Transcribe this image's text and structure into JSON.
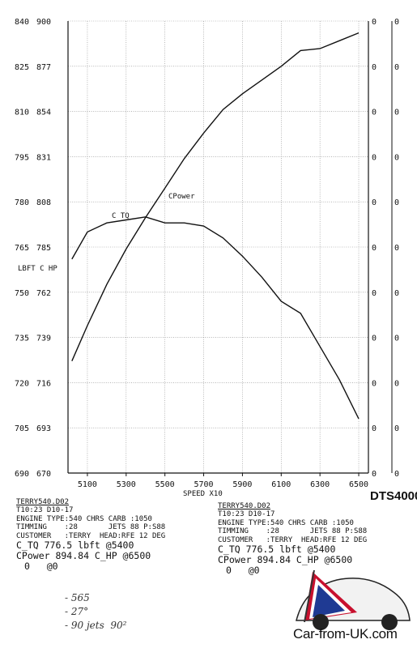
{
  "chart_data": {
    "type": "line",
    "ylabel": "LBFT C HP",
    "xlabel": "SPEED  X10",
    "x_ticks": [
      "5100",
      "5300",
      "5500",
      "5700",
      "5900",
      "6100",
      "6300",
      "6500"
    ],
    "y_left_ticks": [
      "840",
      "825",
      "810",
      "795",
      "780",
      "765",
      "750",
      "735",
      "720",
      "705",
      "690"
    ],
    "y_inner_ticks": [
      "900",
      "877",
      "854",
      "831",
      "808",
      "785",
      "762",
      "739",
      "716",
      "693",
      "670"
    ],
    "y_right_ticks": [
      "0",
      "0",
      "0",
      "0",
      "0",
      "0",
      "0",
      "0",
      "0",
      "0",
      "0"
    ],
    "xlim": [
      5000,
      6550
    ],
    "ylim_torque": [
      690,
      840
    ],
    "ylim_power": [
      670,
      900
    ],
    "grid": true,
    "series": [
      {
        "name": "C TQ",
        "axis": "left",
        "x": [
          5020,
          5100,
          5200,
          5300,
          5400,
          5500,
          5600,
          5700,
          5800,
          5900,
          6000,
          6100,
          6200,
          6300,
          6400,
          6500
        ],
        "values": [
          761,
          770,
          773,
          774,
          775,
          773,
          773,
          772,
          768,
          762,
          755,
          747,
          743,
          732,
          721,
          708
        ]
      },
      {
        "name": "CPower",
        "axis": "inner",
        "x": [
          5020,
          5100,
          5200,
          5300,
          5400,
          5500,
          5600,
          5700,
          5800,
          5900,
          6000,
          6100,
          6200,
          6300,
          6400,
          6500
        ],
        "values": [
          727,
          745,
          766,
          784,
          800,
          815,
          830,
          843,
          855,
          863,
          870,
          877,
          885,
          886,
          890,
          894
        ]
      }
    ]
  },
  "header": {
    "brand": "DTS4000"
  },
  "panels": [
    {
      "file": "TERRY540.D02",
      "time": "T10:23 D10-17",
      "line1": "ENGINE TYPE:540 CHRS CARB :1050",
      "line2": "TIMMING    :28       JETS 88 P:S88",
      "line3": "CUSTOMER   :TERRY  HEAD:RFE 12 DEG",
      "tq": "C_TQ 776.5 lbft @5400",
      "pw": "CPower 894.84 C_HP @6500",
      "zero": "0   @0"
    },
    {
      "file": "TERRY540.D02",
      "time": "T10:23 D10-17",
      "line1": "ENGINE TYPE:540 CHRS CARB :1050",
      "line2": "TIMMING    :28       JETS 88 P:S88",
      "line3": "CUSTOMER   :TERRY  HEAD:RFE 12 DEG",
      "tq": "C_TQ 776.5 lbft @5400",
      "pw": "CPower 894.84 C_HP @6500",
      "zero": "0   @0"
    }
  ],
  "handwritten": [
    "- 565",
    "- 27°",
    "- 90 jets  90²"
  ],
  "watermark": {
    "text": "Car-from-UK.com"
  }
}
